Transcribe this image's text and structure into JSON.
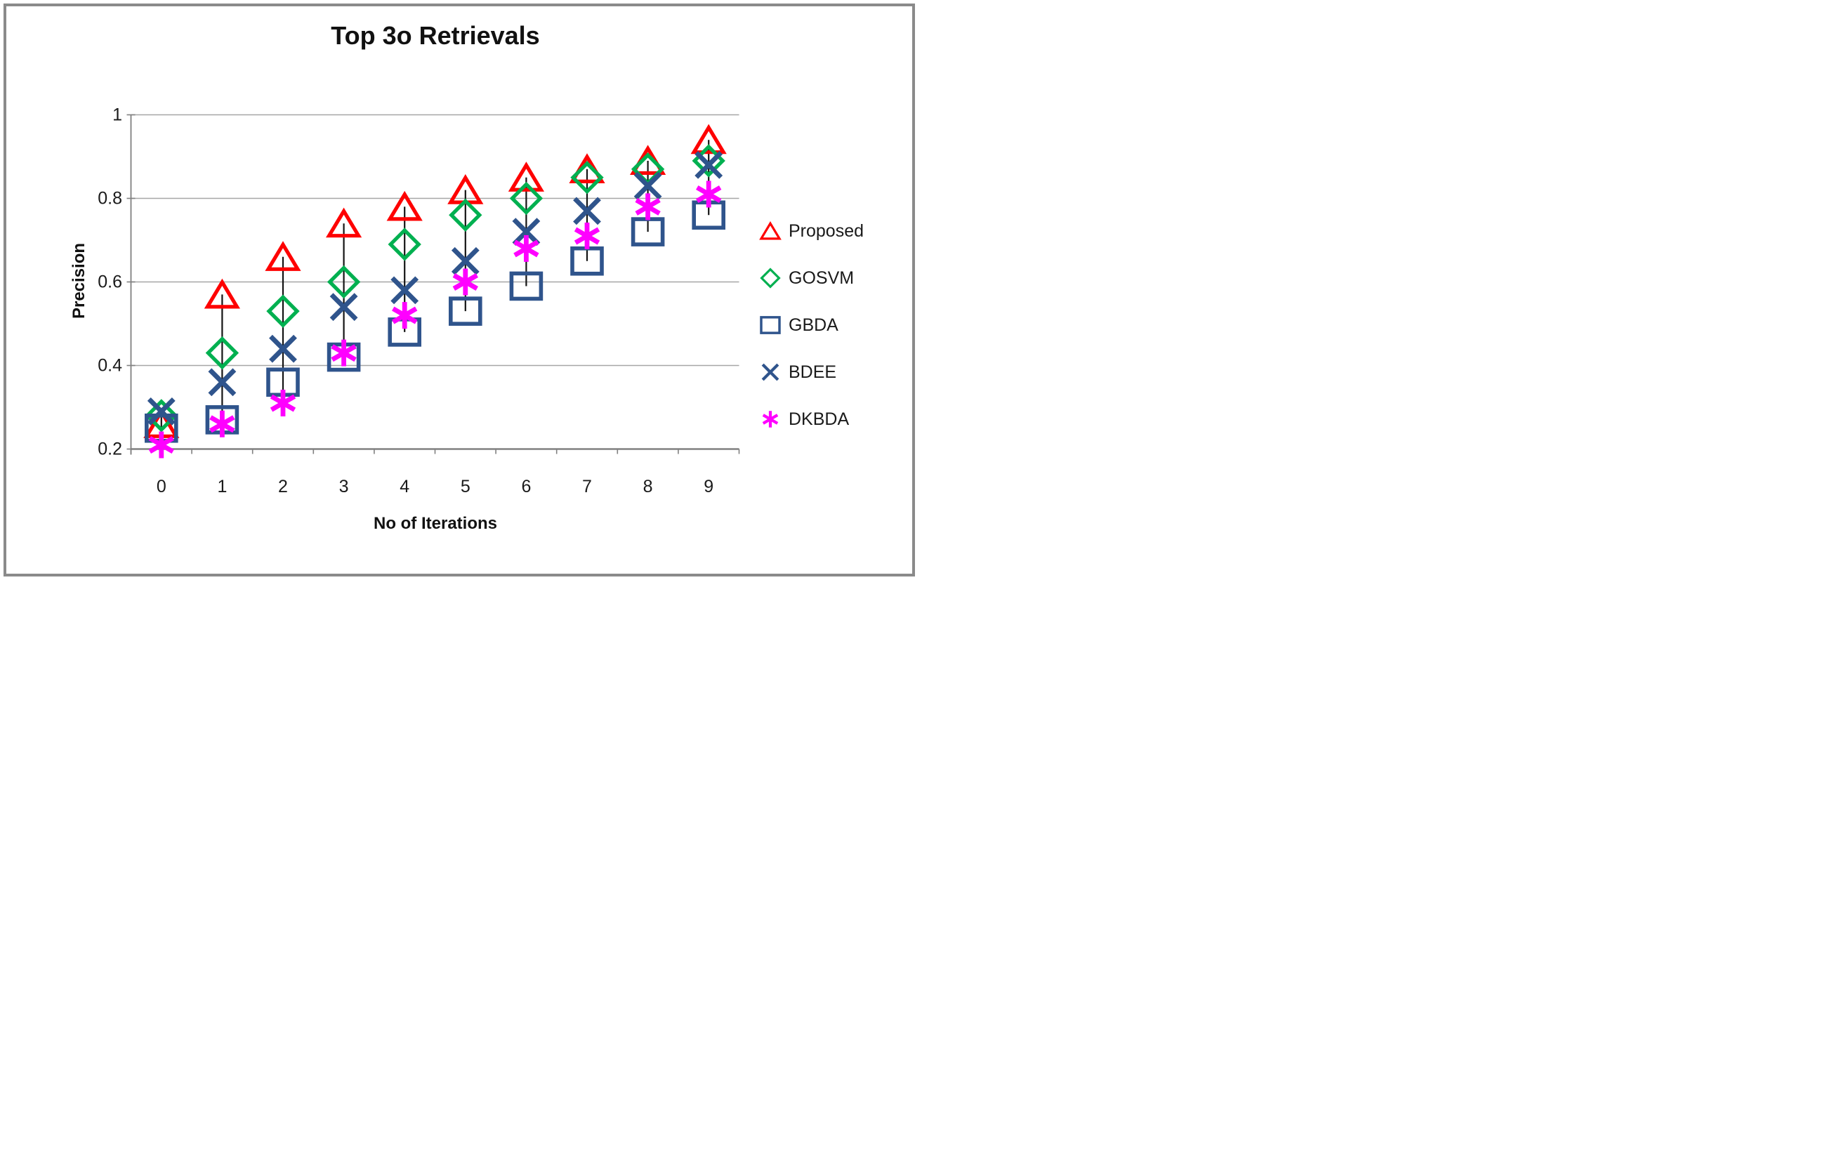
{
  "figure": {
    "border_color": "#8a8a8a",
    "background": "#ffffff"
  },
  "chart_data": {
    "type": "scatter",
    "title": "Top 3o Retrievals",
    "xlabel": "No of Iterations",
    "ylabel": "Precision",
    "x": [
      0,
      1,
      2,
      3,
      4,
      5,
      6,
      7,
      8,
      9
    ],
    "x_tick_labels": [
      "0",
      "1",
      "2",
      "3",
      "4",
      "5",
      "6",
      "7",
      "8",
      "9"
    ],
    "y_ticks": [
      1.0,
      0.8,
      0.6,
      0.4,
      0.2
    ],
    "y_tick_labels": [
      "1",
      "0.8",
      "0.6",
      "0.4",
      "0.2"
    ],
    "ylim": [
      0.2,
      1.0
    ],
    "grid": "horizontal",
    "high_low_lines": true,
    "legend_position": "right",
    "axis_color": "#808080",
    "gridline_color": "#a6a6a6",
    "high_low_line_color": "#141414",
    "series": [
      {
        "name": "Proposed",
        "marker": "triangle",
        "color": "#fe0000",
        "values": [
          0.26,
          0.57,
          0.66,
          0.74,
          0.78,
          0.82,
          0.85,
          0.87,
          0.89,
          0.94
        ]
      },
      {
        "name": "GOSVM",
        "marker": "diamond",
        "color": "#00b050",
        "values": [
          0.28,
          0.43,
          0.53,
          0.6,
          0.69,
          0.76,
          0.8,
          0.85,
          0.87,
          0.89
        ]
      },
      {
        "name": "GBDA",
        "marker": "square",
        "color": "#2f548c",
        "values": [
          0.25,
          0.27,
          0.36,
          0.42,
          0.48,
          0.53,
          0.59,
          0.65,
          0.72,
          0.76
        ]
      },
      {
        "name": "BDEE",
        "marker": "x",
        "color": "#2f548c",
        "values": [
          0.29,
          0.36,
          0.44,
          0.54,
          0.58,
          0.65,
          0.72,
          0.77,
          0.83,
          0.88
        ]
      },
      {
        "name": "DKBDA",
        "marker": "star6",
        "color": "#ff00ff",
        "values": [
          0.21,
          0.26,
          0.31,
          0.43,
          0.52,
          0.6,
          0.68,
          0.71,
          0.78,
          0.81
        ]
      }
    ]
  }
}
